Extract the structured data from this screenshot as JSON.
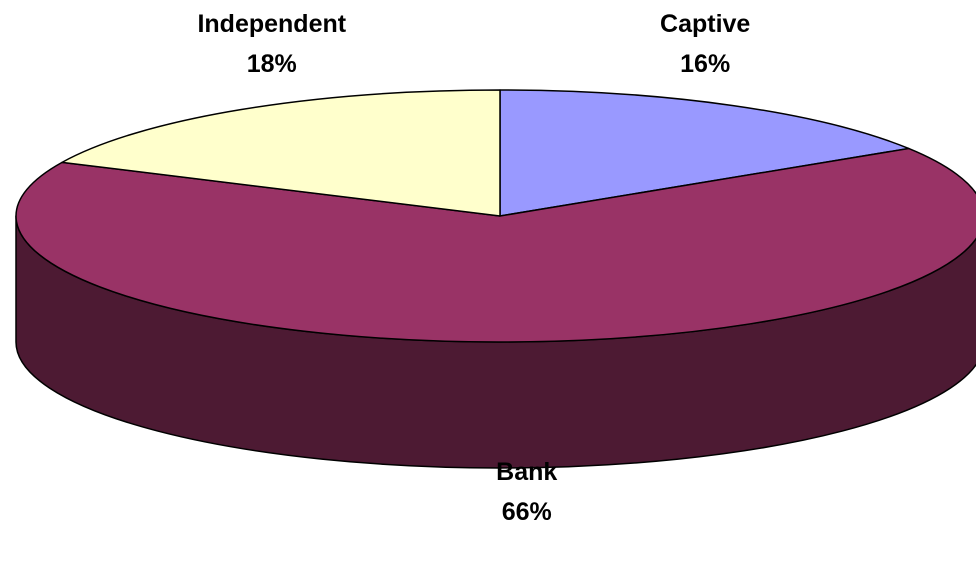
{
  "chart_data": {
    "type": "pie",
    "style": "3d",
    "title": "",
    "labels": [
      "Captive",
      "Bank",
      "Independent"
    ],
    "values": [
      16,
      66,
      18
    ],
    "value_labels": [
      "16%",
      "66%",
      "18%"
    ],
    "colors": [
      "#9999ff",
      "#993366",
      "#ffffcc"
    ],
    "side_colors": [
      "#4d4d80",
      "#4d1a33",
      "#808066"
    ],
    "start_angle_deg": 0,
    "direction": "clockwise",
    "show_legend": false,
    "label_position": "outside"
  }
}
